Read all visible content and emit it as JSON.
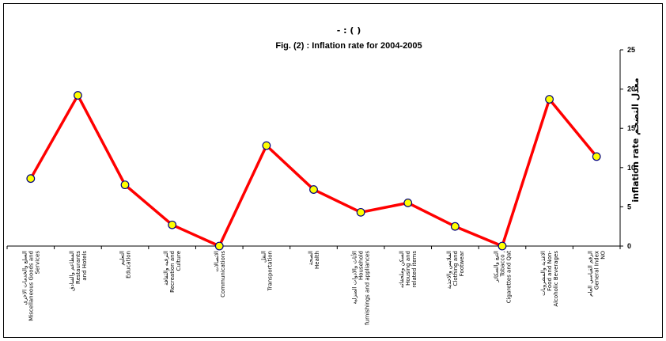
{
  "chart_data": {
    "type": "line",
    "title": "- : ( )",
    "subtitle": "Fig. (2) : Inflation rate for 2004-2005",
    "ylabel": "inflation rate معدل التضخم",
    "ylim": [
      0,
      25
    ],
    "yticks": [
      0,
      5,
      10,
      15,
      20,
      25
    ],
    "grid": false,
    "legend": "none",
    "categories": [
      [
        "السلع والخدمات الاخرى",
        "Miscellaneous Goods and",
        "Services"
      ],
      [
        "المطاعم والفنادق",
        "Restaurants",
        "and Hotels"
      ],
      [
        "التعليم",
        "Education"
      ],
      [
        "الترفيه والثقافة",
        "Recreation and",
        "Culture"
      ],
      [
        "الاتصالات",
        "Communications"
      ],
      [
        "النقل",
        "Transportation"
      ],
      [
        "الصحة",
        "Health"
      ],
      [
        "الأثاث والادوات المنزلية",
        "Household",
        "furnishings and appliances"
      ],
      [
        "السكن وملحقاته",
        "Housing and",
        "related items"
      ],
      [
        "الملابس والاحذية",
        "Clothing and",
        "Footwear"
      ],
      [
        "التبغ والسكائر",
        "Tobacco ,",
        "Cigarettes and Qat"
      ],
      [
        "الاغذية والمشروبات",
        "Food and Non-",
        "Alcoholic Beverages"
      ],
      [
        "الرقم القياسي العام",
        "General Index",
        "NO"
      ]
    ],
    "values": [
      8.6,
      19.2,
      7.8,
      2.7,
      0.0,
      12.8,
      7.2,
      4.3,
      5.5,
      2.5,
      0.0,
      18.7,
      11.4
    ],
    "series_color": "#ff0000",
    "marker_fill": "#ffff00",
    "marker_stroke": "#000080",
    "axis_position": "right"
  }
}
